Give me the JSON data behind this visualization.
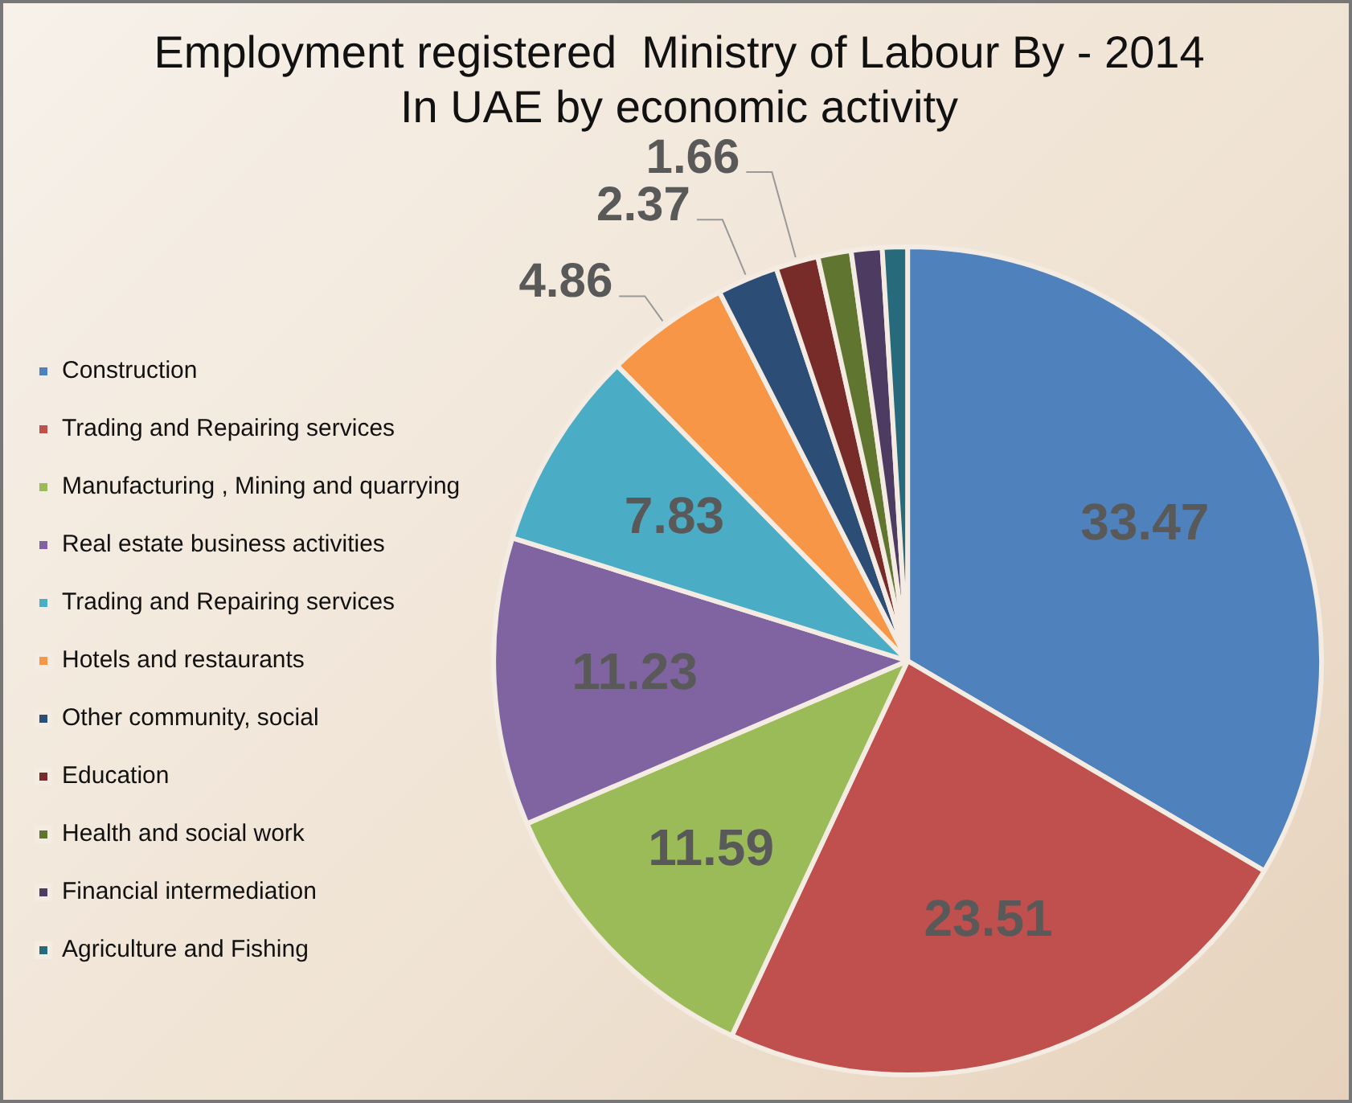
{
  "chart_data": {
    "type": "pie",
    "title": "Employment registered  Ministry of Labour By - 2014\nIn UAE by economic activity",
    "categories": [
      "Construction",
      "Trading and Repairing services",
      "Manufacturing , Mining and quarrying",
      "Real estate business activities",
      "Trading and Repairing services",
      "Hotels and restaurants",
      "Other community, social",
      "Education",
      "Health and social work",
      "Financial intermediation",
      "Agriculture and Fishing"
    ],
    "values": [
      33.47,
      23.51,
      11.59,
      11.23,
      7.83,
      4.86,
      2.37,
      1.66,
      1.3,
      1.2,
      0.98
    ],
    "colors": [
      "#4f81bd",
      "#c0504d",
      "#9bbb59",
      "#8064a2",
      "#4bacc6",
      "#f79646",
      "#2c4d75",
      "#772c2a",
      "#5f7530",
      "#4d3b62",
      "#276a7c"
    ],
    "value_labels": [
      "33.47",
      "23.51",
      "11.59",
      "11.23",
      "7.83",
      "4.86",
      "2.37",
      "1.66",
      null,
      null,
      null
    ],
    "legend": "left"
  }
}
